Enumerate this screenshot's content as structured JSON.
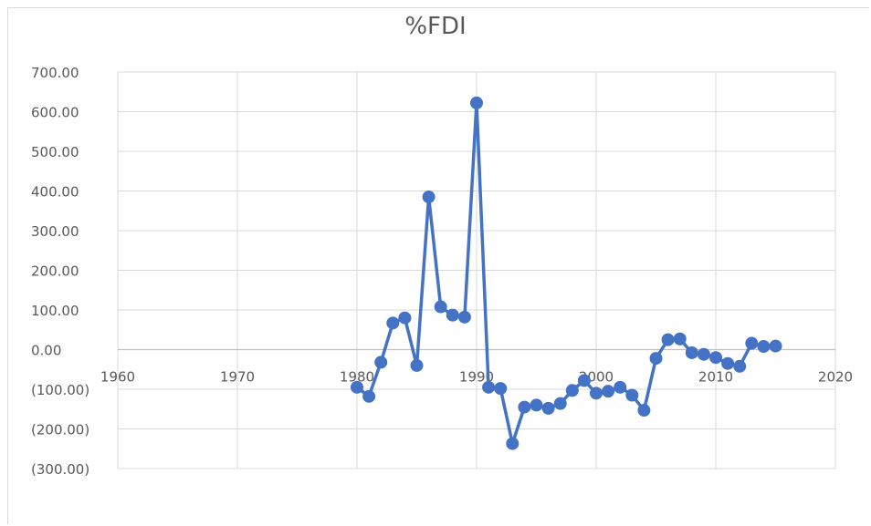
{
  "chart_data": {
    "type": "scatter",
    "mode": "lines+markers",
    "title": "%FDI",
    "series_color": "#4472C4",
    "xlim": [
      1960,
      2020
    ],
    "ylim": [
      -300,
      700
    ],
    "x_ticks": [
      1960,
      1970,
      1980,
      1990,
      2000,
      2010,
      2020
    ],
    "x_tick_labels": [
      "1960",
      "1970",
      "1980",
      "1990",
      "2000",
      "2010",
      "2020"
    ],
    "y_ticks": [
      700,
      600,
      500,
      400,
      300,
      200,
      100,
      0,
      -100,
      -200,
      -300
    ],
    "y_tick_labels": [
      "700.00",
      "600.00",
      "500.00",
      "400.00",
      "300.00",
      "200.00",
      "100.00",
      "0.00",
      "(100.00)",
      "(200.00)",
      "(300.00)"
    ],
    "grid": true,
    "x": [
      1980,
      1981,
      1982,
      1983,
      1984,
      1985,
      1986,
      1987,
      1988,
      1989,
      1990,
      1991,
      1992,
      1993,
      1994,
      1995,
      1996,
      1997,
      1998,
      1999,
      2000,
      2001,
      2002,
      2003,
      2004,
      2005,
      2006,
      2007,
      2008,
      2009,
      2010,
      2011,
      2012,
      2013,
      2014,
      2015
    ],
    "y": [
      -95,
      -118,
      -32,
      67,
      80,
      -40,
      385,
      108,
      87,
      82,
      622,
      -95,
      -98,
      -237,
      -145,
      -140,
      -148,
      -136,
      -103,
      -78,
      -110,
      -105,
      -95,
      -115,
      -153,
      -22,
      25,
      27,
      -8,
      -12,
      -20,
      -35,
      -42,
      16,
      8,
      9
    ]
  }
}
